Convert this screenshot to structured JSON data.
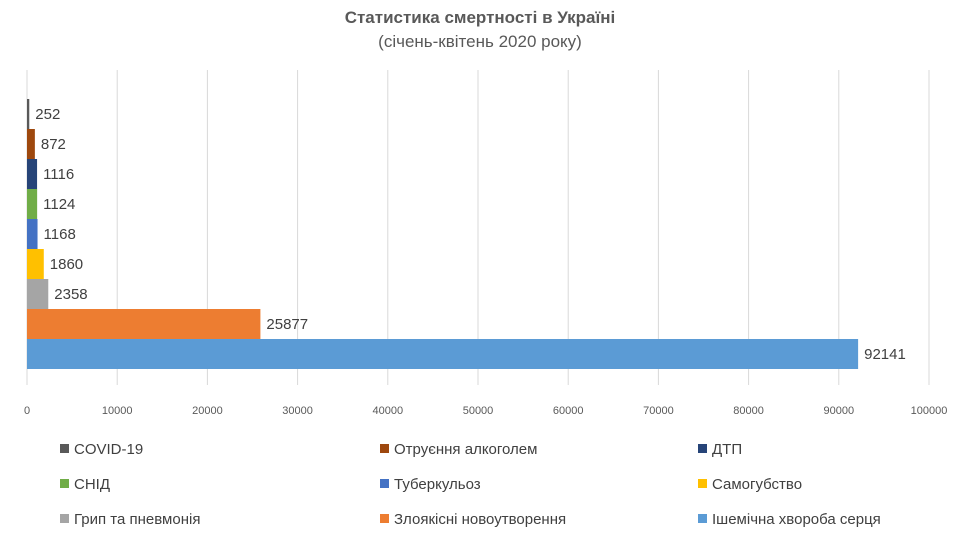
{
  "chart_data": {
    "type": "bar",
    "orientation": "horizontal",
    "title": "Статистика смертності в Україні",
    "subtitle": "(січень-квітень 2020 року)",
    "xlim": [
      0,
      100000
    ],
    "xticks": [
      "0",
      "10000",
      "20000",
      "30000",
      "40000",
      "50000",
      "60000",
      "70000",
      "80000",
      "90000",
      "100000"
    ],
    "grid": true,
    "legend_position": "bottom",
    "series": [
      {
        "name": "COVID-19",
        "value": 252,
        "label": "252",
        "color": "#595959"
      },
      {
        "name": "Отруєння алкоголем",
        "value": 872,
        "label": "872",
        "color": "#9e480e"
      },
      {
        "name": "ДТП",
        "value": 1116,
        "label": "1116",
        "color": "#264478"
      },
      {
        "name": "СНІД",
        "value": 1124,
        "label": "1124",
        "color": "#70ad47"
      },
      {
        "name": "Туберкульоз",
        "value": 1168,
        "label": "1168",
        "color": "#4472c4"
      },
      {
        "name": "Самогубство",
        "value": 1860,
        "label": "1860",
        "color": "#ffc000"
      },
      {
        "name": "Грип та пневмонія",
        "value": 2358,
        "label": "2358",
        "color": "#a5a5a5"
      },
      {
        "name": "Злоякісні новоутворення",
        "value": 25877,
        "label": "25877",
        "color": "#ed7d31"
      },
      {
        "name": "Ішемічна хвороба серця",
        "value": 92141,
        "label": "92141",
        "color": "#5b9bd5"
      }
    ]
  }
}
